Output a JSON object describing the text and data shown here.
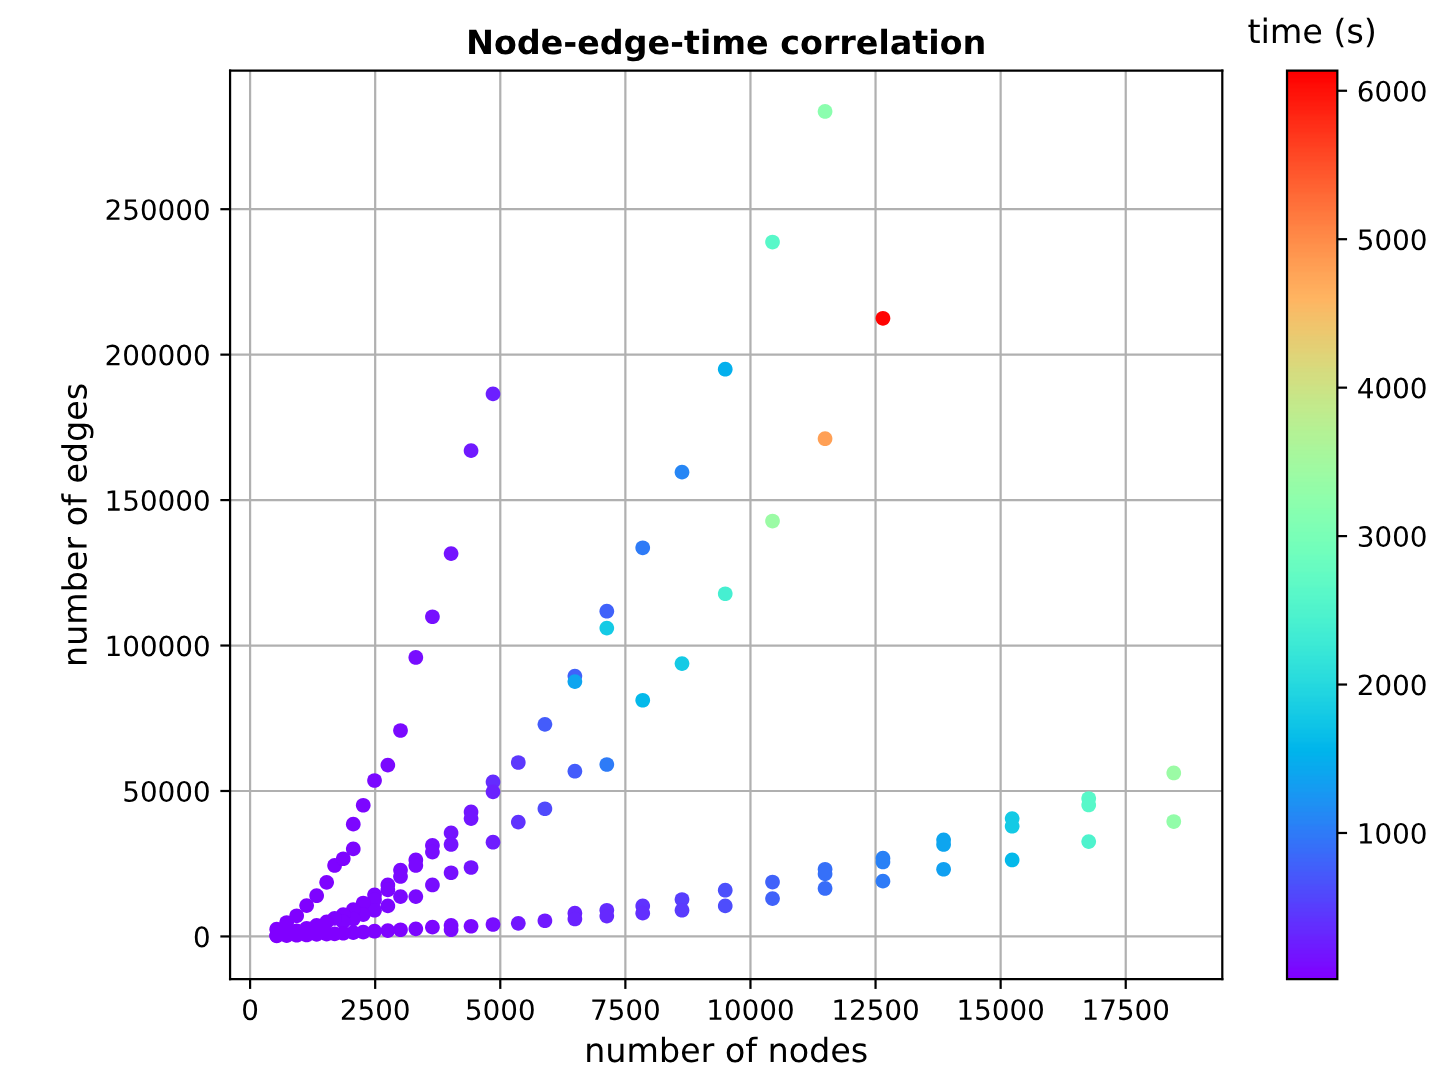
{
  "chart_data": {
    "type": "scatter",
    "title": "Node-edge-time correlation",
    "xlabel": "number of nodes",
    "ylabel": "number of edges",
    "clabel": "time (s)",
    "xlim": [
      -400,
      19430
    ],
    "ylim": [
      -14700,
      297600
    ],
    "xticks": [
      0,
      2500,
      5000,
      7500,
      10000,
      12500,
      15000,
      17500
    ],
    "yticks": [
      0,
      50000,
      100000,
      150000,
      200000,
      250000
    ],
    "clim": [
      15,
      6135
    ],
    "cticks": [
      1000,
      2000,
      3000,
      4000,
      5000,
      6000
    ],
    "grid": true,
    "x": [
      532,
      731,
      931,
      1130,
      1330,
      1530,
      1689,
      1862,
      2062,
      2062,
      2261,
      2487,
      2753,
      3006,
      3312,
      3644,
      4017,
      4416,
      4855,
      4855,
      4855,
      4855,
      4855,
      4416,
      4416,
      4416,
      4416,
      4017,
      4017,
      4017,
      4017,
      4017,
      3644,
      3644,
      3644,
      3644,
      3312,
      3312,
      3312,
      3312,
      3006,
      3006,
      3006,
      3006,
      2753,
      2753,
      2753,
      2753,
      2487,
      2487,
      2487,
      2487,
      2261,
      2261,
      2261,
      2062,
      2062,
      2062,
      1862,
      1862,
      1862,
      1689,
      1689,
      1530,
      1530,
      1330,
      1330,
      1130,
      1130,
      931,
      931,
      731,
      532,
      532,
      5360,
      5360,
      5360,
      5892,
      5892,
      5892,
      6491,
      6491,
      6491,
      6491,
      6491,
      7129,
      7129,
      7129,
      7129,
      7129,
      7847,
      7847,
      7847,
      7847,
      8632,
      8632,
      8632,
      8632,
      9496,
      9496,
      9496,
      9496,
      10441,
      10441,
      10441,
      10441,
      11491,
      11491,
      11491,
      11491,
      11491,
      12648,
      12648,
      12648,
      12648,
      13860,
      13860,
      13860,
      15230,
      15230,
      15230,
      16760,
      16760,
      16760,
      18460,
      18460
    ],
    "values": [
      2500,
      4800,
      7100,
      10600,
      14000,
      18600,
      24400,
      26700,
      30100,
      38600,
      45100,
      53600,
      58900,
      70800,
      95900,
      109900,
      131600,
      167000,
      186500,
      53100,
      49700,
      32400,
      4100,
      42800,
      40500,
      23700,
      3500,
      35600,
      31600,
      21900,
      3800,
      2300,
      31300,
      29000,
      17700,
      3200,
      26300,
      24400,
      13700,
      2600,
      22800,
      20600,
      13700,
      2300,
      17700,
      16000,
      10500,
      2000,
      14300,
      12600,
      9000,
      1800,
      11500,
      7500,
      1500,
      9200,
      6000,
      1300,
      7500,
      5000,
      1100,
      6200,
      900,
      5000,
      800,
      3800,
      700,
      2800,
      500,
      1900,
      400,
      300,
      300,
      200,
      59800,
      39300,
      4500,
      72900,
      43900,
      5400,
      89500,
      87600,
      56800,
      8000,
      6000,
      111800,
      106000,
      59100,
      9000,
      7000,
      133600,
      81200,
      10500,
      8000,
      159600,
      93800,
      12700,
      9000,
      195000,
      117800,
      15900,
      10500,
      238700,
      142800,
      18700,
      13000,
      283600,
      171100,
      23100,
      21500,
      16500,
      212500,
      26900,
      25600,
      19000,
      33200,
      31600,
      23100,
      40500,
      37900,
      26300,
      47400,
      45200,
      32600,
      56200,
      39500
    ],
    "cvalues": [
      20,
      25,
      30,
      35,
      40,
      50,
      55,
      60,
      70,
      70,
      80,
      90,
      100,
      110,
      130,
      150,
      180,
      220,
      260,
      350,
      300,
      250,
      120,
      200,
      200,
      180,
      100,
      160,
      160,
      150,
      90,
      90,
      130,
      130,
      120,
      80,
      110,
      110,
      100,
      70,
      90,
      90,
      90,
      60,
      80,
      80,
      75,
      55,
      70,
      70,
      65,
      50,
      60,
      55,
      45,
      50,
      45,
      40,
      45,
      40,
      35,
      40,
      30,
      35,
      30,
      30,
      25,
      25,
      20,
      20,
      20,
      18,
      16,
      16,
      450,
      400,
      200,
      750,
      600,
      220,
      800,
      1400,
      750,
      300,
      280,
      800,
      1800,
      1000,
      350,
      330,
      1000,
      1600,
      400,
      380,
      1100,
      1800,
      500,
      480,
      1500,
      2400,
      650,
      620,
      2600,
      3400,
      800,
      780,
      3200,
      4800,
      900,
      900,
      880,
      6100,
      1050,
      1050,
      1000,
      1400,
      1400,
      1350,
      1800,
      1800,
      1600,
      2600,
      2600,
      2500,
      3400,
      3300
    ]
  }
}
